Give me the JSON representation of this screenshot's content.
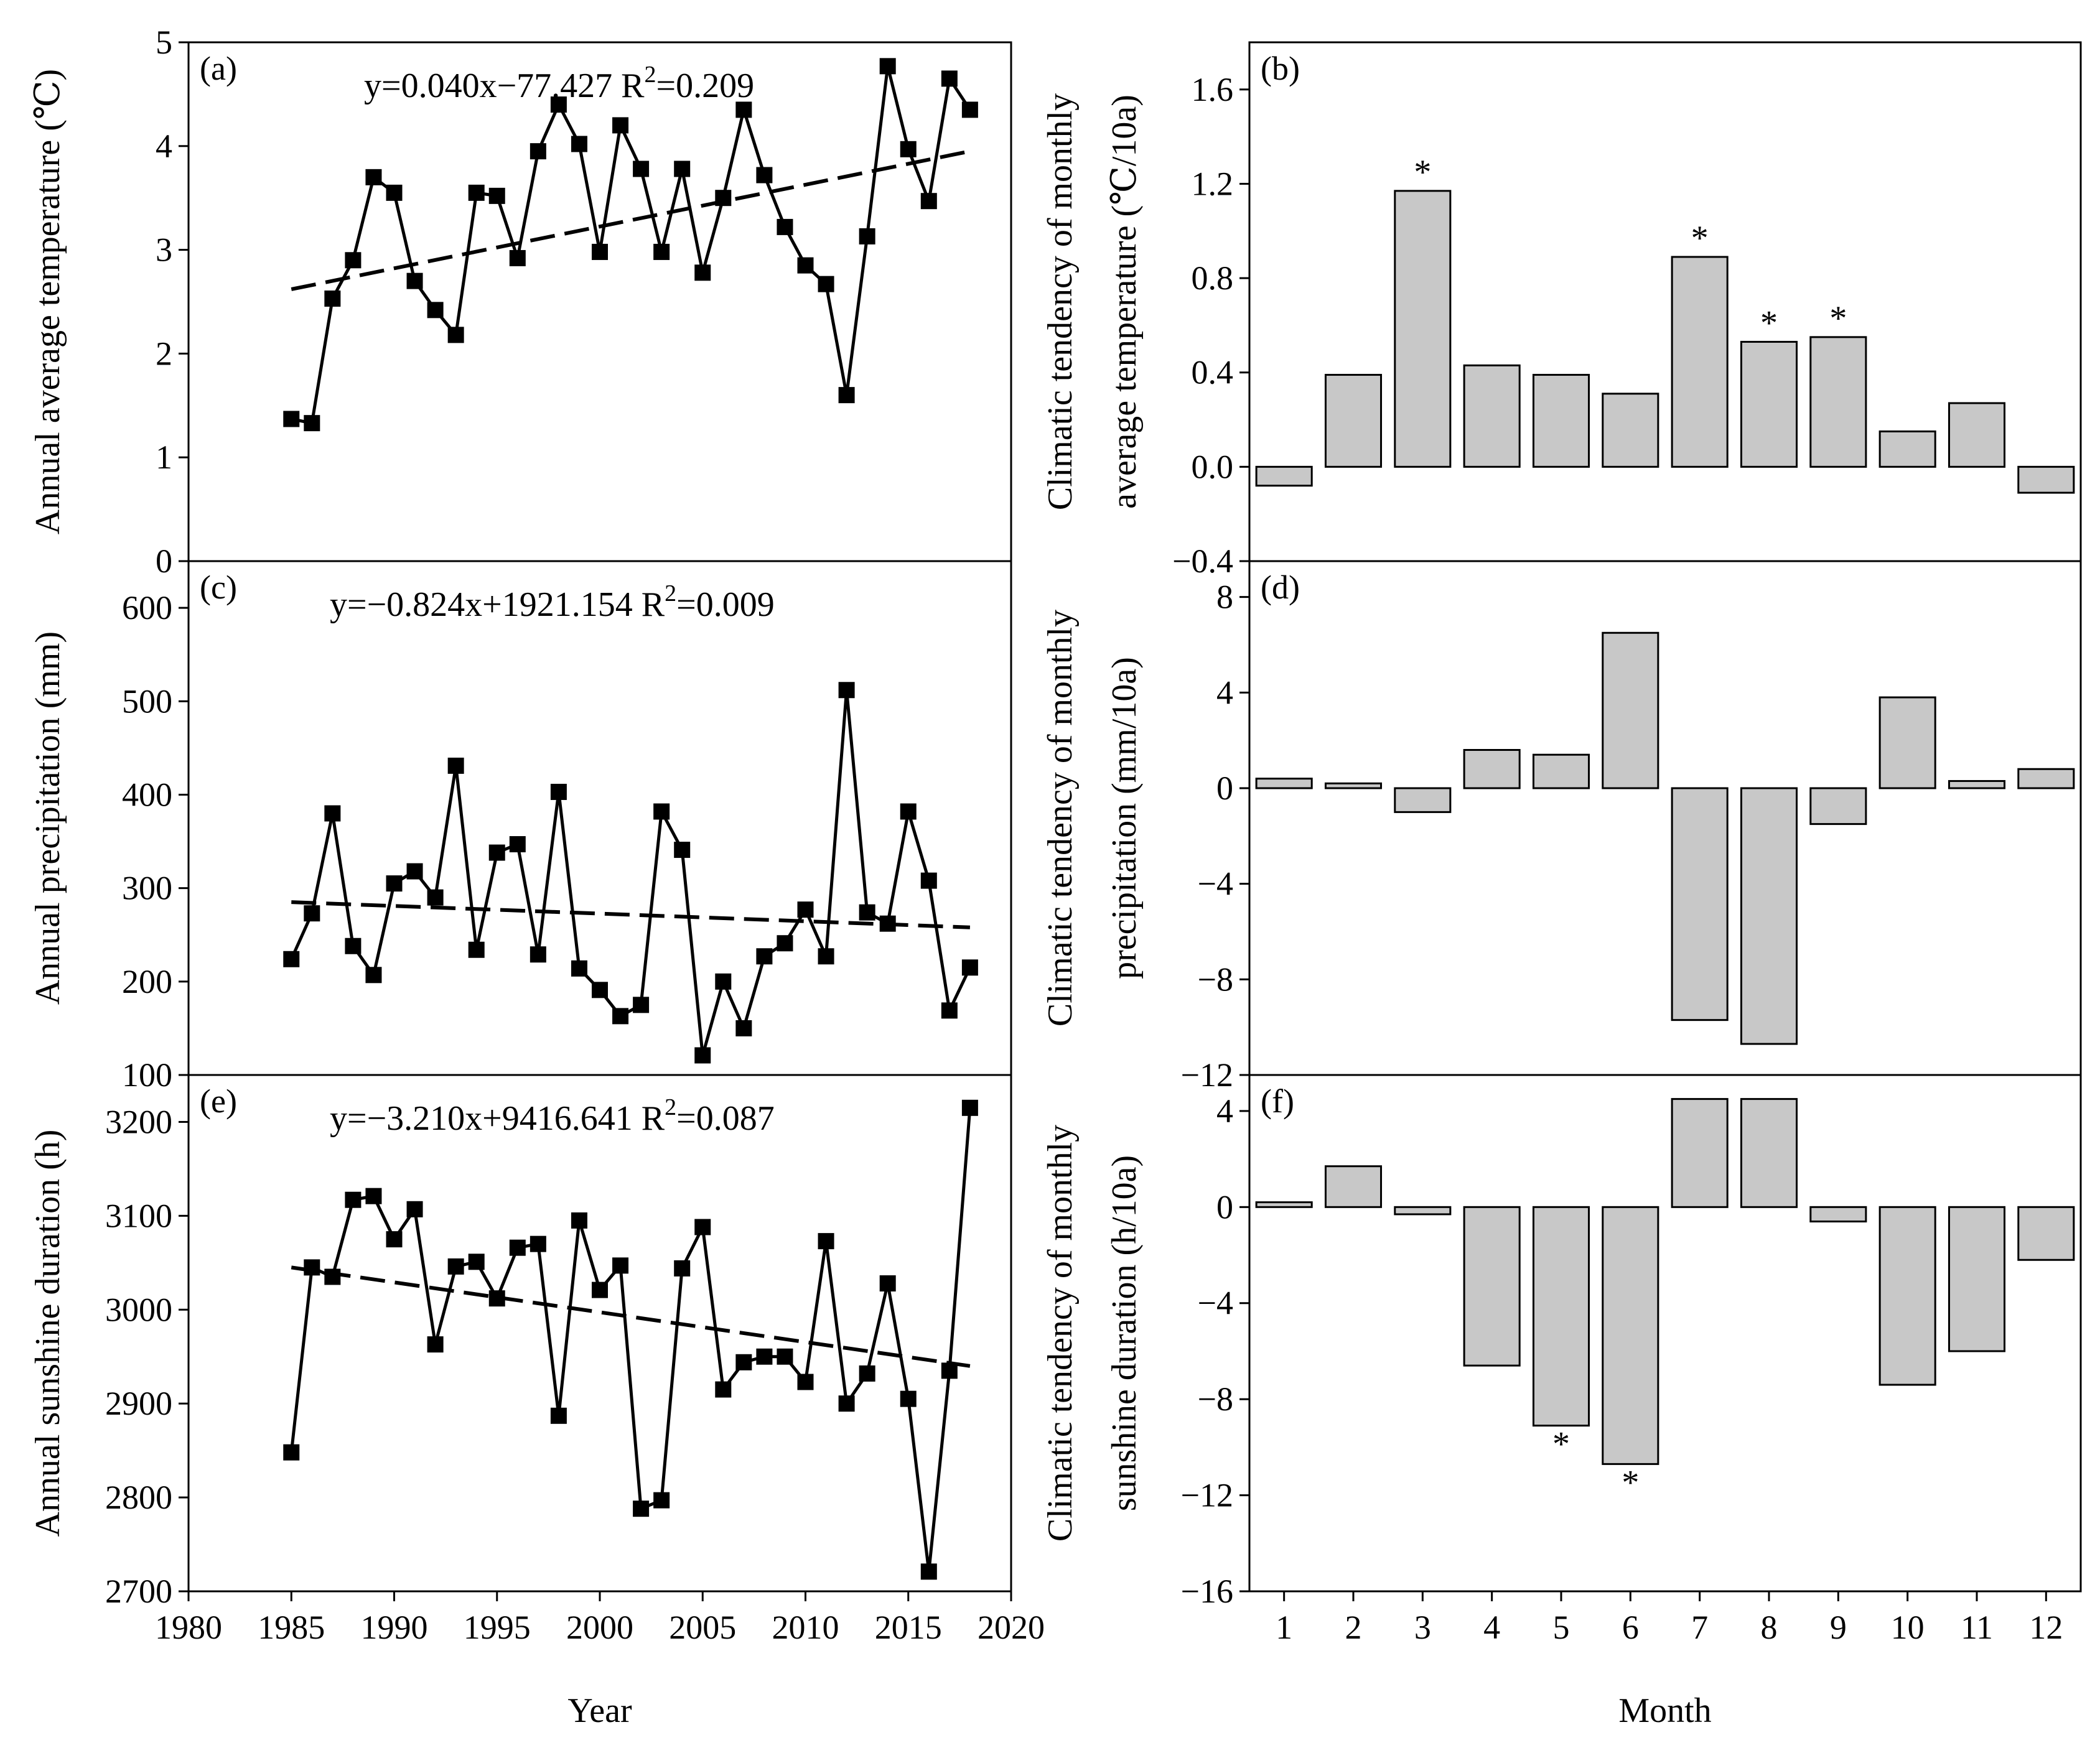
{
  "chart_data": [
    {
      "id": "a",
      "type": "line",
      "panel_label": "(a)",
      "equation": "y=0.040x−77.427 R",
      "r2": "2",
      "r2_value": "=0.209",
      "ylabel": "Annual average temperature (℃)",
      "ylim": [
        0,
        5
      ],
      "yticks": [
        0,
        1,
        2,
        3,
        4,
        5
      ],
      "ytick_labels": [
        "0",
        "1",
        "2",
        "3",
        "4",
        "5"
      ],
      "xlim": [
        1980,
        2020
      ],
      "x": [
        1985,
        1986,
        1987,
        1988,
        1989,
        1990,
        1991,
        1992,
        1993,
        1994,
        1995,
        1996,
        1997,
        1998,
        1999,
        2000,
        2001,
        2002,
        2003,
        2004,
        2005,
        2006,
        2007,
        2008,
        2009,
        2010,
        2011,
        2012,
        2013,
        2014,
        2015,
        2016,
        2017,
        2018
      ],
      "values": [
        1.37,
        1.33,
        2.53,
        2.9,
        3.7,
        3.55,
        2.7,
        2.42,
        2.18,
        3.55,
        3.52,
        2.92,
        3.95,
        4.4,
        4.02,
        2.98,
        4.2,
        3.78,
        2.98,
        3.78,
        2.78,
        3.5,
        4.35,
        3.72,
        3.22,
        2.85,
        2.67,
        1.6,
        3.13,
        4.77,
        3.97,
        3.47,
        4.65,
        4.35
      ],
      "trend": [
        [
          1985,
          2.62
        ],
        [
          2018,
          3.95
        ]
      ]
    },
    {
      "id": "c",
      "type": "line",
      "panel_label": "(c)",
      "equation": "y=−0.824x+1921.154 R",
      "r2": "2",
      "r2_value": "=0.009",
      "ylabel": "Annual precipitation (mm)",
      "ylim": [
        100,
        650
      ],
      "yticks": [
        100,
        200,
        300,
        400,
        500,
        600
      ],
      "ytick_labels": [
        "100",
        "200",
        "300",
        "400",
        "500",
        "600"
      ],
      "xlim": [
        1980,
        2020
      ],
      "x": [
        1985,
        1986,
        1987,
        1988,
        1989,
        1990,
        1991,
        1992,
        1993,
        1994,
        1995,
        1996,
        1997,
        1998,
        1999,
        2000,
        2001,
        2002,
        2003,
        2004,
        2005,
        2006,
        2007,
        2008,
        2009,
        2010,
        2011,
        2012,
        2013,
        2014,
        2015,
        2016,
        2017,
        2018
      ],
      "values": [
        224,
        273,
        380,
        238,
        207,
        305,
        318,
        290,
        431,
        234,
        338,
        347,
        229,
        403,
        214,
        191,
        163,
        175,
        382,
        341,
        121,
        200,
        150,
        227,
        241,
        277,
        227,
        512,
        274,
        262,
        382,
        308,
        169,
        215
      ],
      "trend": [
        [
          1985,
          285
        ],
        [
          2018,
          258
        ]
      ]
    },
    {
      "id": "e",
      "type": "line",
      "panel_label": "(e)",
      "equation": "y=−3.210x+9416.641 R",
      "r2": "2",
      "r2_value": "=0.087",
      "ylabel": "Annual sunshine duration (h)",
      "ylim": [
        2700,
        3250
      ],
      "yticks": [
        2700,
        2800,
        2900,
        3000,
        3100,
        3200
      ],
      "ytick_labels": [
        "2700",
        "2800",
        "2900",
        "3000",
        "3100",
        "3200"
      ],
      "xlim": [
        1980,
        2020
      ],
      "xticks": [
        1980,
        1985,
        1990,
        1995,
        2000,
        2005,
        2010,
        2015,
        2020
      ],
      "xtick_labels": [
        "1980",
        "1985",
        "1990",
        "1995",
        "2000",
        "2005",
        "2010",
        "2015",
        "2020"
      ],
      "xlabel": "Year",
      "x": [
        1985,
        1986,
        1987,
        1988,
        1989,
        1990,
        1991,
        1992,
        1993,
        1994,
        1995,
        1996,
        1997,
        1998,
        1999,
        2000,
        2001,
        2002,
        2003,
        2004,
        2005,
        2006,
        2007,
        2008,
        2009,
        2010,
        2011,
        2012,
        2013,
        2014,
        2015,
        2016,
        2017,
        2018
      ],
      "values": [
        2848,
        3045,
        3035,
        3117,
        3121,
        3075,
        3107,
        2963,
        3046,
        3051,
        3012,
        3066,
        3070,
        2887,
        3095,
        3021,
        3047,
        2788,
        2797,
        3044,
        3088,
        2915,
        2944,
        2950,
        2950,
        2923,
        3073,
        2900,
        2932,
        3028,
        2905,
        2721,
        2935,
        3215
      ],
      "trend": [
        [
          1985,
          3045
        ],
        [
          2018,
          2940
        ]
      ]
    },
    {
      "id": "b",
      "type": "bar",
      "panel_label": "(b)",
      "ylabel_line1": "Climatic tendency of monthly",
      "ylabel_line2": "average temperature (℃/10a)",
      "ylim": [
        -0.4,
        1.8
      ],
      "yticks": [
        -0.4,
        0.0,
        0.4,
        0.8,
        1.2,
        1.6
      ],
      "ytick_labels": [
        "−0.4",
        "0.0",
        "0.4",
        "0.8",
        "1.2",
        "1.6"
      ],
      "categories": [
        "1",
        "2",
        "3",
        "4",
        "5",
        "6",
        "7",
        "8",
        "9",
        "10",
        "11",
        "12"
      ],
      "values": [
        -0.08,
        0.39,
        1.17,
        0.43,
        0.39,
        0.31,
        0.89,
        0.53,
        0.55,
        0.15,
        0.27,
        -0.11
      ],
      "significance": [
        "",
        "",
        "*",
        "",
        "",
        "",
        "*",
        "*",
        "*",
        "",
        "",
        ""
      ]
    },
    {
      "id": "d",
      "type": "bar",
      "panel_label": "(d)",
      "ylabel_line1": "Climatic tendency of monthly",
      "ylabel_line2": "precipitation (mm/10a)",
      "ylim": [
        -12,
        9.5
      ],
      "yticks": [
        -12,
        -8,
        -4,
        0,
        4,
        8
      ],
      "ytick_labels": [
        "−12",
        "−8",
        "−4",
        "0",
        "4",
        "8"
      ],
      "categories": [
        "1",
        "2",
        "3",
        "4",
        "5",
        "6",
        "7",
        "8",
        "9",
        "10",
        "11",
        "12"
      ],
      "values": [
        0.4,
        0.2,
        -1.0,
        1.6,
        1.4,
        6.5,
        -9.7,
        -10.7,
        -1.5,
        3.8,
        0.3,
        0.8
      ],
      "significance": [
        "",
        "",
        "",
        "",
        "",
        "",
        "",
        "",
        "",
        "",
        "",
        ""
      ]
    },
    {
      "id": "f",
      "type": "bar",
      "panel_label": "(f)",
      "ylabel_line1": "Climatic tendency of monthly",
      "ylabel_line2": "sunshine duration (h/10a)",
      "ylim": [
        -16,
        5.5
      ],
      "yticks": [
        -16,
        -12,
        -8,
        -4,
        0,
        4
      ],
      "ytick_labels": [
        "−16",
        "−12",
        "−8",
        "−4",
        "0",
        "4"
      ],
      "categories": [
        "1",
        "2",
        "3",
        "4",
        "5",
        "6",
        "7",
        "8",
        "9",
        "10",
        "11",
        "12"
      ],
      "xlabel": "Month",
      "values": [
        0.2,
        1.7,
        -0.3,
        -6.6,
        -9.1,
        -10.7,
        4.5,
        4.5,
        -0.6,
        -7.4,
        -6.0,
        -2.2
      ],
      "significance": [
        "",
        "",
        "",
        "",
        "*",
        "*",
        "",
        "",
        "",
        "",
        "",
        ""
      ]
    }
  ]
}
